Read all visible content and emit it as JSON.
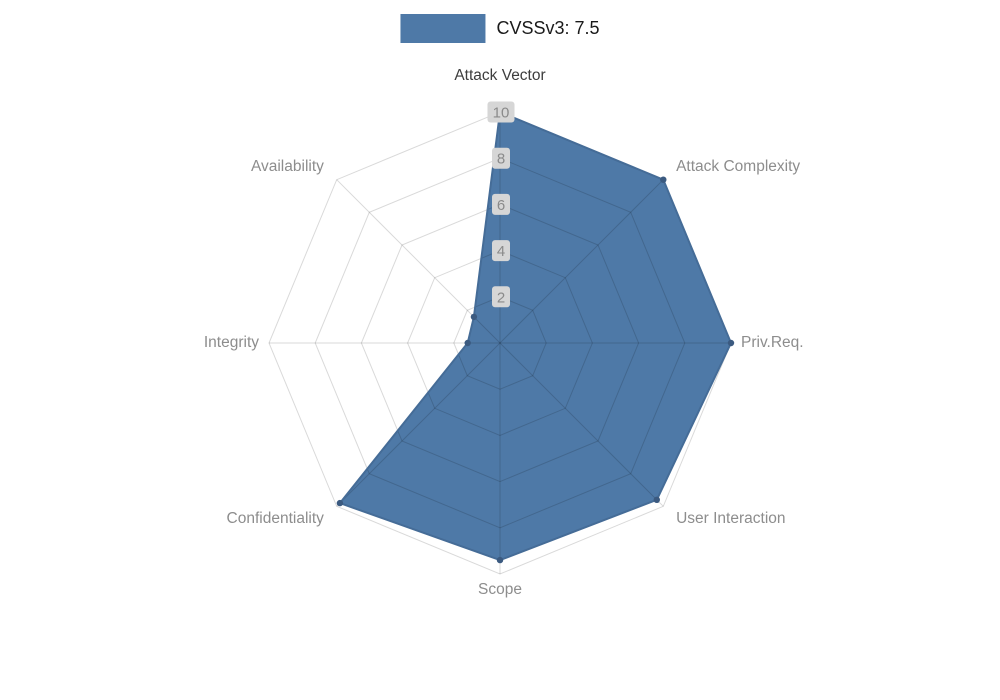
{
  "legend": {
    "label": "CVSSv3: 7.5",
    "swatch_color": "#4e79a7",
    "position": "top"
  },
  "chart_data": {
    "type": "radar",
    "title": "",
    "categories": [
      "Attack Vector",
      "Attack Complexity",
      "Priv.Req.",
      "User Interaction",
      "Scope",
      "Confidentiality",
      "Integrity",
      "Availability"
    ],
    "series": [
      {
        "name": "CVSSv3: 7.5",
        "values": [
          10,
          10,
          10,
          9.6,
          9.4,
          9.8,
          1.4,
          1.6
        ]
      }
    ],
    "max": 10,
    "min": 0,
    "rings": [
      2,
      4,
      6,
      8,
      10
    ],
    "tick_labels": [
      "2",
      "4",
      "6",
      "8",
      "10"
    ],
    "grid": true,
    "legend_position": "top",
    "fill_color": "#4e79a7",
    "line_color": "#456c97",
    "marker_color": "#3b5a80",
    "grid_color": "rgba(0,0,0,0.15)",
    "tick_bg_color": "#d6d6d6",
    "tick_text_color": "#8a8a8a",
    "axis_label_color": "#8d8d8d",
    "axis_highlight_index": 0,
    "axis_highlight_color": "#3d3d3d"
  }
}
